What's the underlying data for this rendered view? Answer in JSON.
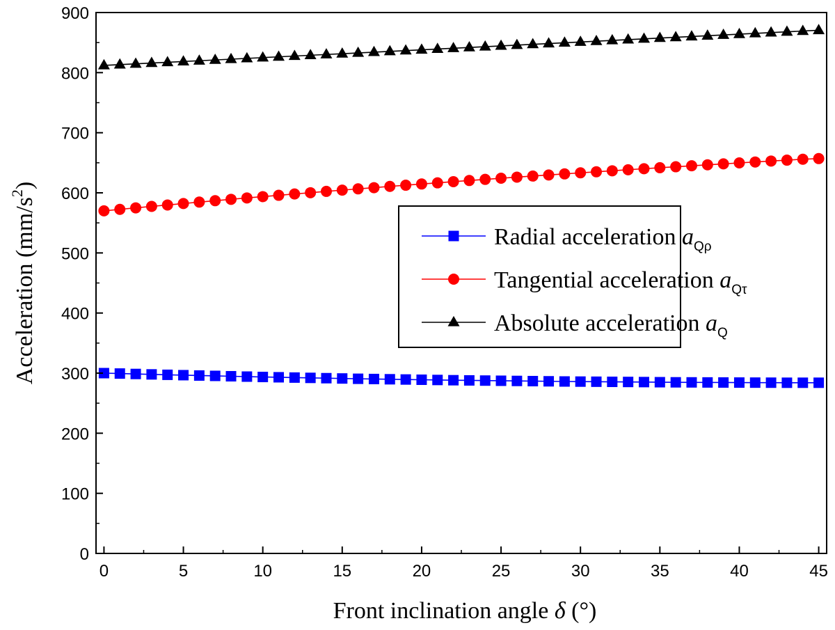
{
  "chart_data": {
    "type": "line",
    "xlabel": "Front inclination angle δ (°)",
    "xlabel_parts": {
      "main": "Front inclination angle ",
      "symbol": "δ",
      "unit": " (°)"
    },
    "ylabel": "Acceleration (mm/s²)",
    "ylabel_parts": {
      "main": "Acceleration (mm/s",
      "sup": "2",
      "close": ")"
    },
    "xlim": [
      -0.5,
      45.5
    ],
    "ylim": [
      0,
      900
    ],
    "xticks": [
      "0",
      "5",
      "10",
      "15",
      "20",
      "25",
      "30",
      "35",
      "40",
      "45"
    ],
    "yticks": [
      "0",
      "100",
      "200",
      "300",
      "400",
      "500",
      "600",
      "700",
      "800",
      "900"
    ],
    "grid": false,
    "legend_position": "center-right",
    "x": [
      0,
      1,
      2,
      3,
      4,
      5,
      6,
      7,
      8,
      9,
      10,
      11,
      12,
      13,
      14,
      15,
      16,
      17,
      18,
      19,
      20,
      21,
      22,
      23,
      24,
      25,
      26,
      27,
      28,
      29,
      30,
      31,
      32,
      33,
      34,
      35,
      36,
      37,
      38,
      39,
      40,
      41,
      42,
      43,
      44,
      45
    ],
    "series": [
      {
        "name": "Radial acceleration aQρ",
        "label_main": "Radial acceleration ",
        "label_var": "a",
        "label_sub": "Qρ",
        "color": "#0000ff",
        "marker": "square",
        "values": [
          300.0,
          299.3,
          298.6,
          297.9,
          297.2,
          296.6,
          296.0,
          295.4,
          294.8,
          294.2,
          293.6,
          293.1,
          292.6,
          292.1,
          291.6,
          291.1,
          290.6,
          290.2,
          289.8,
          289.4,
          289.0,
          288.6,
          288.2,
          287.9,
          287.6,
          287.3,
          287.0,
          286.7,
          286.4,
          286.1,
          285.9,
          285.7,
          285.5,
          285.3,
          285.1,
          284.9,
          284.7,
          284.6,
          284.5,
          284.4,
          284.3,
          284.2,
          284.1,
          284.0,
          284.0,
          284.0
        ]
      },
      {
        "name": "Tangential acceleration aQτ",
        "label_main": "Tangential acceleration ",
        "label_var": "a",
        "label_sub": "Qτ",
        "color": "#ff0000",
        "marker": "circle",
        "values": [
          570.0,
          572.5,
          575.0,
          577.4,
          579.8,
          582.2,
          584.6,
          586.9,
          589.2,
          591.5,
          593.7,
          595.9,
          598.1,
          600.2,
          602.4,
          604.5,
          606.6,
          608.6,
          610.7,
          612.7,
          614.7,
          616.6,
          618.6,
          620.5,
          622.4,
          624.3,
          626.1,
          627.9,
          629.7,
          631.5,
          633.3,
          635.0,
          636.7,
          638.4,
          640.1,
          641.8,
          643.4,
          645.0,
          646.6,
          648.2,
          649.8,
          651.3,
          652.9,
          654.4,
          655.9,
          657.0
        ]
      },
      {
        "name": "Absolute acceleration aQ",
        "label_main": "Absolute acceleration ",
        "label_var": "a",
        "label_sub": "Q",
        "color": "#000000",
        "marker": "triangle",
        "values": [
          812.0,
          813.3,
          814.6,
          815.9,
          817.2,
          818.5,
          819.8,
          821.1,
          822.4,
          823.7,
          825.0,
          826.3,
          827.6,
          828.9,
          830.2,
          831.5,
          832.8,
          834.1,
          835.4,
          836.7,
          838.0,
          839.3,
          840.6,
          841.9,
          843.2,
          844.5,
          845.8,
          847.1,
          848.4,
          849.7,
          851.0,
          852.3,
          853.6,
          854.9,
          856.2,
          857.5,
          858.8,
          860.1,
          861.4,
          862.7,
          864.0,
          865.3,
          866.6,
          867.9,
          869.2,
          870.5
        ]
      }
    ]
  }
}
